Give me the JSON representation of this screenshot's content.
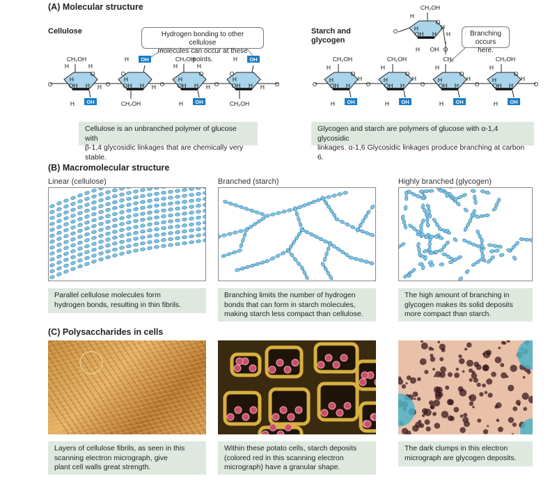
{
  "section_a": {
    "title": "(A) Molecular structure",
    "cellulose_label": "Cellulose",
    "starch_label_1": "Starch and",
    "starch_label_2": "glycogen",
    "callout_hbond_1": "Hydrogen bonding to other cellulose",
    "callout_hbond_2": "molecules can occur at these points.",
    "callout_branch_1": "Branching",
    "callout_branch_2": "occurs here.",
    "chem": {
      "ch2oh": "CH₂OH",
      "h": "H",
      "oh": "OH",
      "o": "O",
      "ch2": "CH₂"
    },
    "caption_cellulose_1": "Cellulose is an unbranched polymer of glucose with",
    "caption_cellulose_2": "β-1,4 glycosidic linkages that are chemically very stable.",
    "caption_starch_1": "Glycogen and starch are polymers of glucose with α-1,4 glycosidic",
    "caption_starch_2": "linkages. α-1,6 Glycosidic linkages produce branching at carbon 6."
  },
  "section_b": {
    "title": "(B) Macromolecular structure",
    "panels": [
      {
        "label": "Linear (cellulose)",
        "caption_1": "Parallel cellulose molecules form",
        "caption_2": "hydrogen bonds, resulting in thin fibrils.",
        "caption_3": ""
      },
      {
        "label": "Branched (starch)",
        "caption_1": "Branching limits the number of hydrogen",
        "caption_2": "bonds that can form in starch molecules,",
        "caption_3": "making starch less compact than cellulose."
      },
      {
        "label": "Highly branched (glycogen)",
        "caption_1": "The high amount of branching in",
        "caption_2": "glycogen makes its solid deposits",
        "caption_3": "more compact than starch."
      }
    ]
  },
  "section_c": {
    "title": "(C) Polysaccharides in cells",
    "panels": [
      {
        "caption_1": "Layers of cellulose fibrils, as seen in this",
        "caption_2": "scanning electron micrograph, give",
        "caption_3": "plant cell walls great strength."
      },
      {
        "caption_1": "Within these potato cells, starch deposits",
        "caption_2": "(colored red in this scanning electron",
        "caption_3": "micrograph) have a granular shape."
      },
      {
        "caption_1": "The dark clumps in this electron",
        "caption_2": "micrograph are glycogen deposits.",
        "caption_3": ""
      }
    ]
  },
  "colors": {
    "ring": "#a9d4ea",
    "ring_stroke": "#222",
    "oh_badge": "#1a7cc8",
    "caption_bg": "#dfe8df",
    "bead": "#7cc3e6"
  }
}
